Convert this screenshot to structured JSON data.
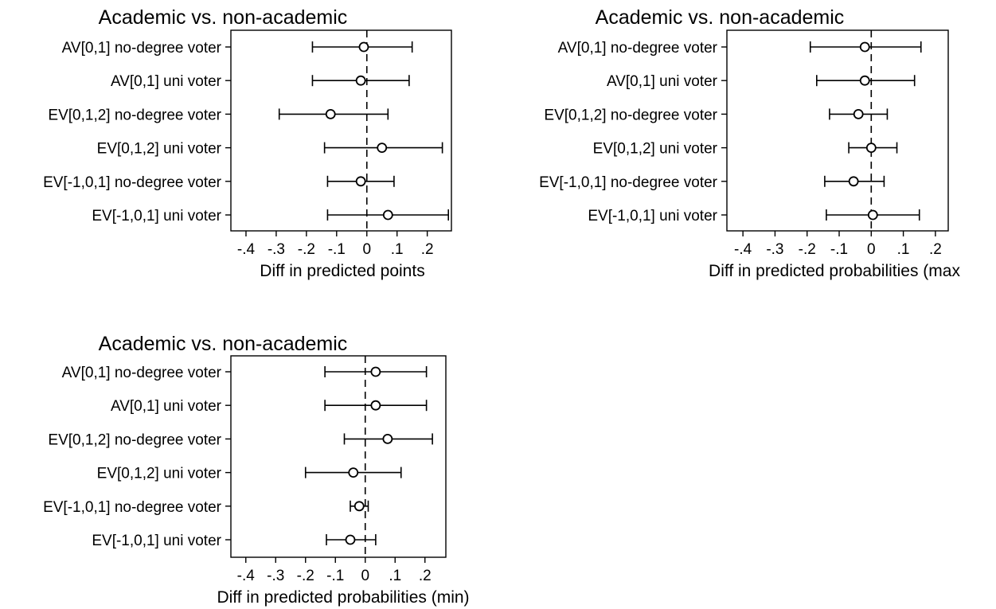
{
  "colors": {
    "ink": "#000000",
    "background": "#ffffff"
  },
  "chart_data": [
    {
      "type": "scatter",
      "title": "Academic vs. non-academic",
      "xlabel": "Diff in predicted points",
      "ylabel": "",
      "xlim": [
        -0.45,
        0.28
      ],
      "xticks": [
        -0.4,
        -0.3,
        -0.2,
        -0.1,
        0,
        0.1,
        0.2
      ],
      "xtick_labels": [
        "-.4",
        "-.3",
        "-.2",
        "-.1",
        "0",
        ".1",
        ".2"
      ],
      "reference_line": 0,
      "categories": [
        "AV[0,1] no-degree voter",
        "AV[0,1] uni voter",
        "EV[0,1,2] no-degree voter",
        "EV[0,1,2] uni voter",
        "EV[-1,0,1] no-degree voter",
        "EV[-1,0,1] uni voter"
      ],
      "estimates": [
        -0.01,
        -0.02,
        -0.12,
        0.05,
        -0.02,
        0.07
      ],
      "ci_low": [
        -0.18,
        -0.18,
        -0.29,
        -0.14,
        -0.13,
        -0.13
      ],
      "ci_high": [
        0.15,
        0.14,
        0.07,
        0.25,
        0.09,
        0.27
      ]
    },
    {
      "type": "scatter",
      "title": "Academic vs. non-academic",
      "xlabel": "Diff in predicted probabilities (max",
      "ylabel": "",
      "xlim": [
        -0.45,
        0.24
      ],
      "xticks": [
        -0.4,
        -0.3,
        -0.2,
        -0.1,
        0,
        0.1,
        0.2
      ],
      "xtick_labels": [
        "-.4",
        "-.3",
        "-.2",
        "-.1",
        "0",
        ".1",
        ".2"
      ],
      "reference_line": 0,
      "categories": [
        "AV[0,1] no-degree voter",
        "AV[0,1] uni voter",
        "EV[0,1,2] no-degree voter",
        "EV[0,1,2] uni voter",
        "EV[-1,0,1] no-degree voter",
        "EV[-1,0,1] uni voter"
      ],
      "estimates": [
        -0.02,
        -0.02,
        -0.04,
        0.0,
        -0.055,
        0.005
      ],
      "ci_low": [
        -0.19,
        -0.17,
        -0.13,
        -0.07,
        -0.145,
        -0.14
      ],
      "ci_high": [
        0.155,
        0.135,
        0.05,
        0.08,
        0.04,
        0.15
      ]
    },
    {
      "type": "scatter",
      "title": "Academic vs. non-academic",
      "xlabel": "Diff in predicted probabilities (min)",
      "ylabel": "",
      "xlim": [
        -0.45,
        0.27
      ],
      "xticks": [
        -0.4,
        -0.3,
        -0.2,
        -0.1,
        0,
        0.1,
        0.2
      ],
      "xtick_labels": [
        "-.4",
        "-.3",
        "-.2",
        "-.1",
        "0",
        ".1",
        ".2"
      ],
      "reference_line": 0,
      "categories": [
        "AV[0,1] no-degree voter",
        "AV[0,1] uni voter",
        "EV[0,1,2] no-degree voter",
        "EV[0,1,2] uni voter",
        "EV[-1,0,1] no-degree voter",
        "EV[-1,0,1] uni voter"
      ],
      "estimates": [
        0.035,
        0.035,
        0.075,
        -0.04,
        -0.02,
        -0.05
      ],
      "ci_low": [
        -0.135,
        -0.135,
        -0.07,
        -0.2,
        -0.05,
        -0.13
      ],
      "ci_high": [
        0.205,
        0.205,
        0.225,
        0.12,
        0.01,
        0.035
      ]
    }
  ]
}
